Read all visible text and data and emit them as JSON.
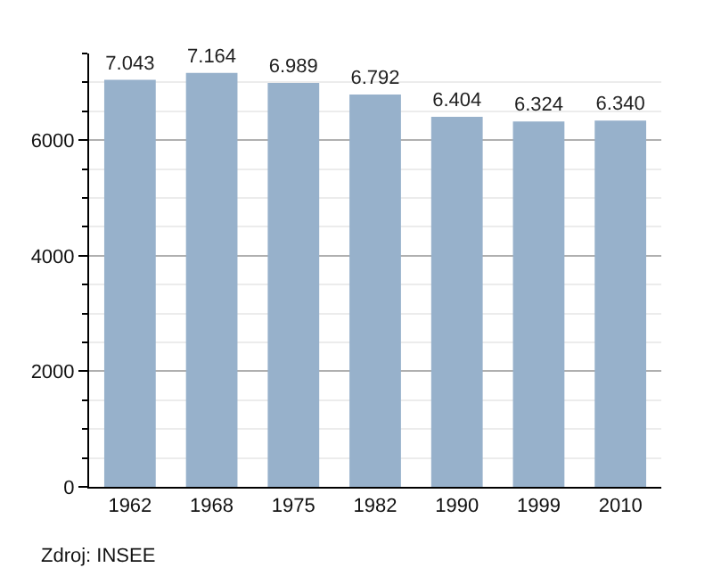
{
  "chart_data": {
    "type": "bar",
    "categories": [
      "1962",
      "1968",
      "1975",
      "1982",
      "1990",
      "1999",
      "2010"
    ],
    "values": [
      7043,
      7164,
      6989,
      6792,
      6404,
      6324,
      6340
    ],
    "value_labels": [
      "7.043",
      "7.164",
      "6.989",
      "6.792",
      "6.404",
      "6.324",
      "6.340"
    ],
    "color": "#97b1cb",
    "ylim": [
      0,
      7500
    ],
    "yticks": [
      0,
      2000,
      4000,
      6000
    ],
    "grid": "y",
    "annotations": [
      "Zdroj: INSEE"
    ]
  }
}
